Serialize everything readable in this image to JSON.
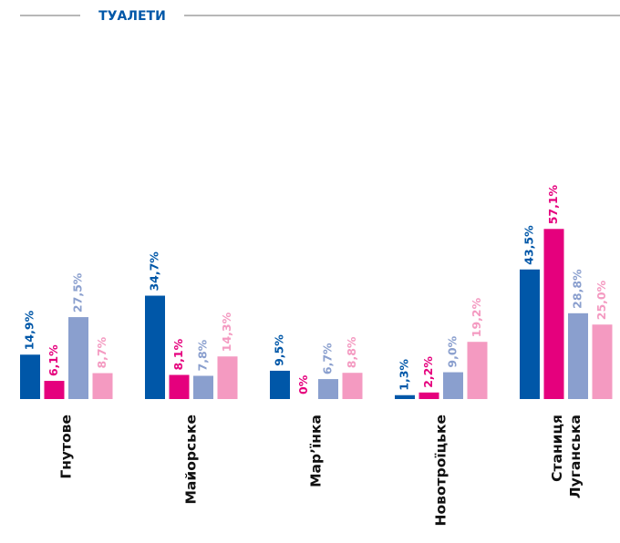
{
  "chart_data": {
    "type": "bar",
    "title": "ТУАЛЕТИ",
    "categories": [
      "Гнутове",
      "Майорське",
      "Мар’їнка",
      "Новотроїцьке",
      "Станиця Луганська"
    ],
    "series": [
      {
        "color": "#0057a8",
        "values": [
          14.9,
          34.7,
          9.5,
          1.3,
          43.5
        ],
        "value_labels": [
          "14,9%",
          "34,7%",
          "9,5%",
          "1,3%",
          "43,5%"
        ]
      },
      {
        "color": "#e5007d",
        "values": [
          6.1,
          8.1,
          0,
          2.2,
          57.1
        ],
        "value_labels": [
          "6,1%",
          "8,1%",
          "0%",
          "2,2%",
          "57,1%"
        ]
      },
      {
        "color": "#8a9fce",
        "values": [
          27.5,
          7.8,
          6.7,
          9.0,
          28.8
        ],
        "value_labels": [
          "27,5%",
          "7,8%",
          "6,7%",
          "9,0%",
          "28,8%"
        ]
      },
      {
        "color": "#f49ac1",
        "values": [
          8.7,
          14.3,
          8.8,
          19.2,
          25.0
        ],
        "value_labels": [
          "8,7%",
          "14,3%",
          "8,8%",
          "19,2%",
          "25,0%"
        ]
      }
    ]
  }
}
